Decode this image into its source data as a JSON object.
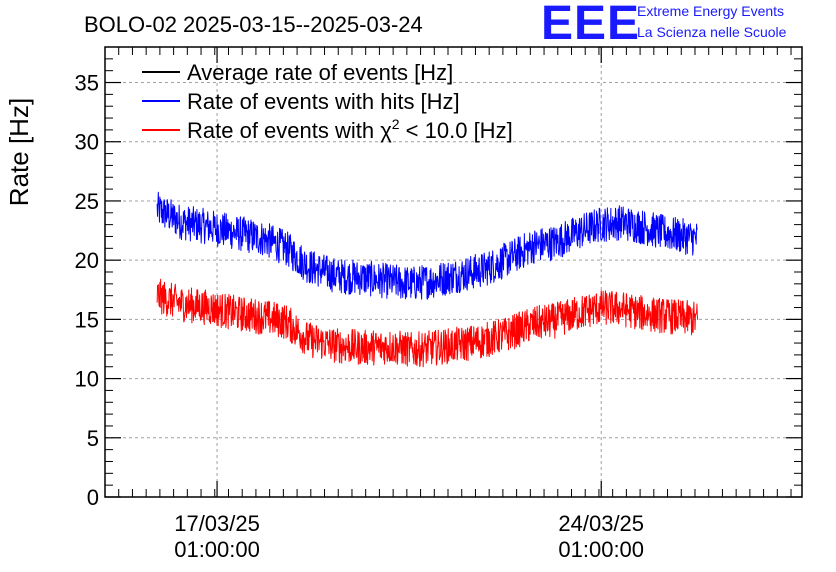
{
  "header": {
    "title": "BOLO-02 2025-03-15--2025-03-24",
    "logo_text": "EEE",
    "logo_line1": "Extreme Energy Events",
    "logo_line2": "La Scienza nelle Scuole"
  },
  "colors": {
    "average": "#000000",
    "hits": "#0000ff",
    "chi2": "#ff0000",
    "logo": "#1a1aff",
    "grid": "#a0a0a0"
  },
  "chart_data": {
    "type": "line",
    "title": "BOLO-02 2025-03-15--2025-03-24",
    "xlabel": "",
    "ylabel": "Rate [Hz]",
    "ylim": [
      0,
      38
    ],
    "xlim_days": [
      15.0,
      27.7
    ],
    "grid": true,
    "legend_position": "top-left",
    "y_ticks": [
      0,
      5,
      10,
      15,
      20,
      25,
      30,
      35
    ],
    "y_tick_labels": [
      "0",
      "5",
      "10",
      "15",
      "20",
      "25",
      "30",
      "35"
    ],
    "x_ticks": [
      {
        "day": 17.0417,
        "date": "17/03/25",
        "time": "01:00:00"
      },
      {
        "day": 24.0417,
        "date": "24/03/25",
        "time": "01:00:00"
      }
    ],
    "legend": [
      {
        "key": "average",
        "pre": "Average rate of events [Hz]",
        "sup": "",
        "post": ""
      },
      {
        "key": "hits",
        "pre": "Rate of events with hits [Hz]",
        "sup": "",
        "post": ""
      },
      {
        "key": "chi2",
        "pre": "Rate of events with χ",
        "sup": "2",
        "post": " < 10.0 [Hz]"
      }
    ],
    "series": [
      {
        "key": "average",
        "name": "Average rate of events [Hz]",
        "x": [],
        "values": []
      },
      {
        "key": "hits",
        "name": "Rate of events with hits [Hz]",
        "x": [
          15.95,
          16.4,
          16.9,
          17.4,
          17.9,
          18.3,
          18.7,
          19.2,
          19.7,
          20.2,
          20.6,
          21.0,
          21.5,
          21.9,
          22.3,
          22.8,
          23.2,
          23.6,
          24.0,
          24.4,
          24.8,
          25.2,
          25.8
        ],
        "values": [
          24.3,
          23.2,
          22.8,
          22.3,
          21.8,
          21.0,
          19.5,
          18.7,
          18.5,
          18.2,
          18.0,
          18.3,
          18.8,
          19.2,
          20.0,
          21.2,
          21.5,
          22.3,
          23.0,
          23.2,
          22.8,
          22.3,
          21.8
        ]
      },
      {
        "key": "chi2",
        "name": "Rate of events with χ2 < 10.0 [Hz]",
        "x": [
          15.95,
          16.4,
          16.9,
          17.4,
          17.9,
          18.3,
          18.7,
          19.2,
          19.7,
          20.2,
          20.6,
          21.0,
          21.5,
          21.9,
          22.3,
          22.8,
          23.2,
          23.6,
          24.0,
          24.4,
          24.8,
          25.2,
          25.8
        ],
        "values": [
          17.0,
          16.3,
          16.0,
          15.5,
          15.2,
          14.8,
          13.3,
          12.8,
          12.6,
          12.7,
          12.4,
          12.6,
          12.9,
          13.2,
          13.7,
          14.6,
          14.9,
          15.5,
          16.0,
          15.9,
          15.5,
          15.3,
          15.0
        ]
      }
    ]
  }
}
